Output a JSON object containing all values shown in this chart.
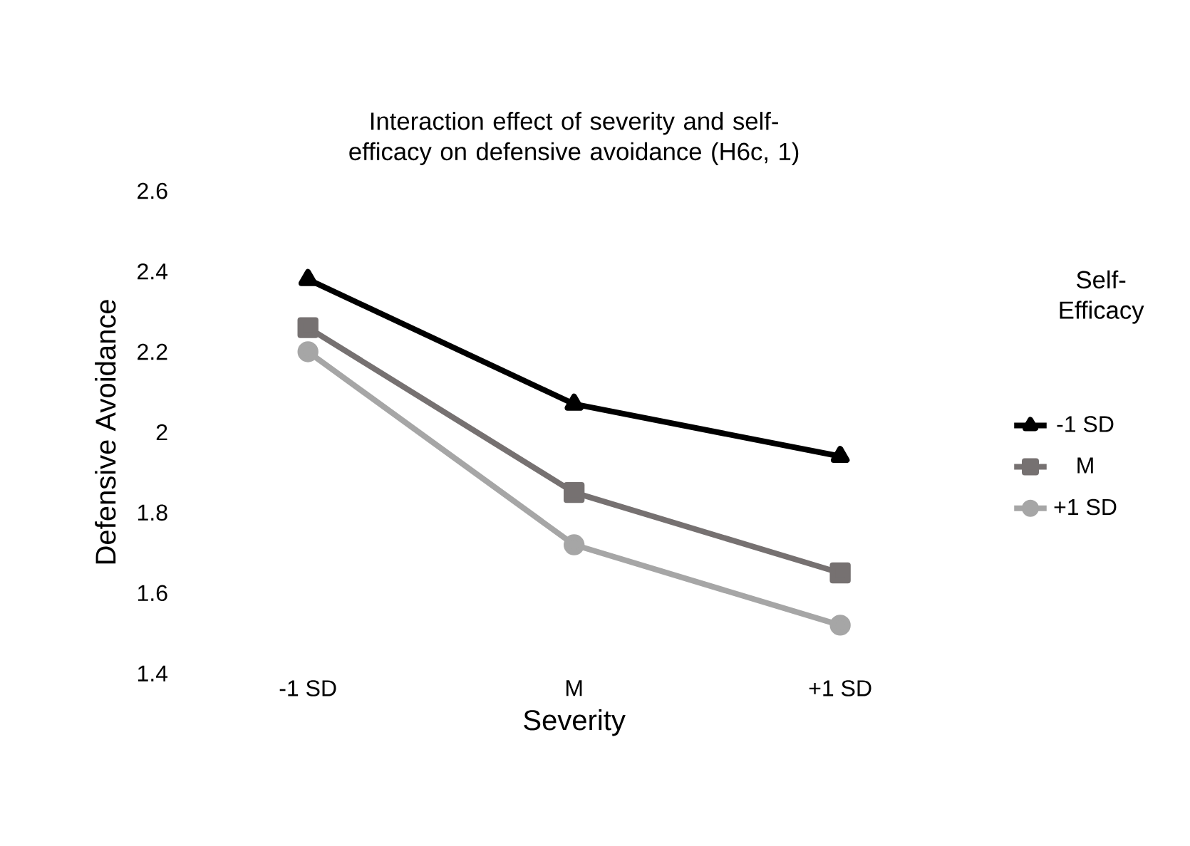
{
  "chart_data": {
    "type": "line",
    "title": "Interaction effect of severity and self-efficacy on defensive avoidance (H6c, 1)",
    "xlabel": "Severity",
    "ylabel": "Defensive Avoidance",
    "legend_title": "Self-Efficacy",
    "legend": "right",
    "categories": [
      "-1 SD",
      "M",
      "+1 SD"
    ],
    "series": [
      {
        "name": "-1 SD",
        "color": "#000000",
        "marker": "triangle",
        "values": [
          2.38,
          2.07,
          1.94
        ]
      },
      {
        "name": "M",
        "color": "#767171",
        "marker": "square",
        "values": [
          2.26,
          1.85,
          1.65
        ]
      },
      {
        "name": "+1 SD",
        "color": "#a6a6a6",
        "marker": "circle",
        "values": [
          2.2,
          1.72,
          1.52
        ]
      }
    ],
    "ylim": [
      1.4,
      2.6
    ],
    "yticks": [
      1.4,
      1.6,
      1.8,
      2,
      2.2,
      2.4,
      2.6
    ]
  }
}
